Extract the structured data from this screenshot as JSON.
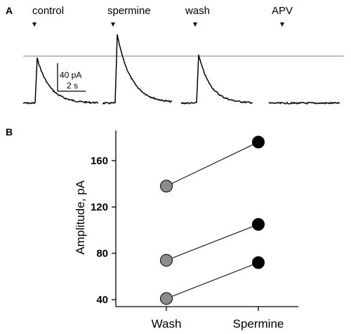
{
  "panel_a": {
    "label": "A",
    "conditions": [
      "control",
      "spermine",
      "wash",
      "APV"
    ],
    "scale_bar": {
      "amplitude_label": "40 pA",
      "time_label": "2 s"
    }
  },
  "panel_b": {
    "label": "B"
  },
  "chart_data": {
    "type": "scatter",
    "categories": [
      "Wash",
      "Spermine"
    ],
    "series": [
      {
        "values": [
          138,
          176
        ]
      },
      {
        "values": [
          74,
          105
        ]
      },
      {
        "values": [
          41,
          72
        ]
      }
    ],
    "ylabel": "Amplitude, pA",
    "yticks": [
      40,
      80,
      120,
      160
    ],
    "ylim": [
      34,
      186
    ],
    "marker_colors": {
      "Wash": "#8c8c8c",
      "Spermine": "#000000"
    }
  }
}
